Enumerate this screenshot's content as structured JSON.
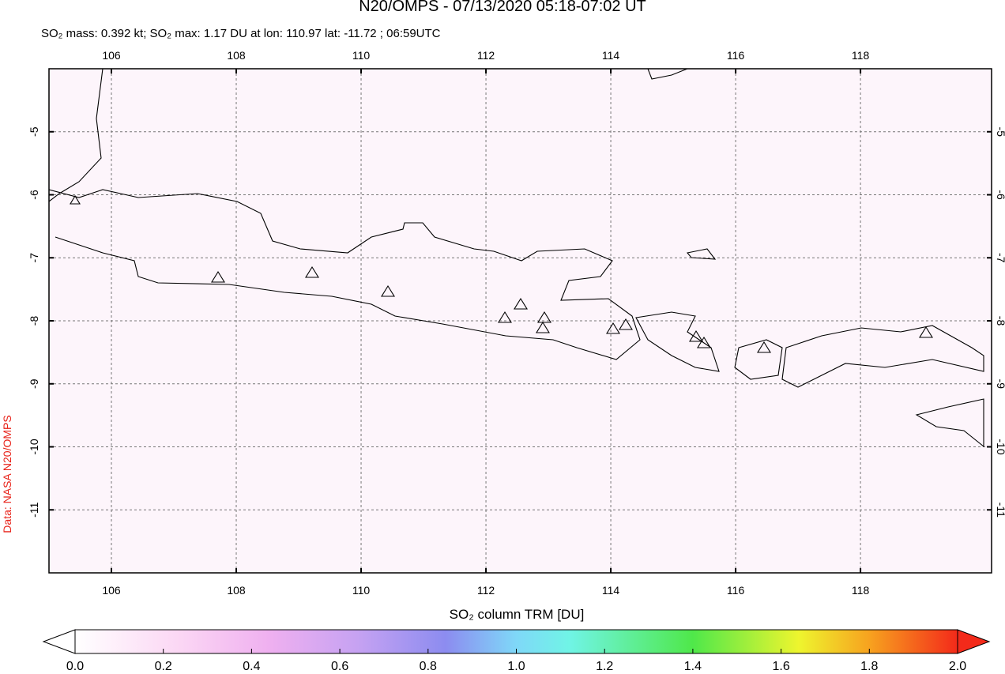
{
  "header": {
    "title": "N20/OMPS - 07/13/2020 05:18-07:02 UT",
    "subtitle": "SO₂ mass: 0.392 kt; SO₂ max: 1.17 DU at lon: 110.97 lat: -11.72 ; 06:59UTC"
  },
  "map": {
    "xlim": [
      105,
      120.1
    ],
    "ylim": [
      -12,
      -4
    ],
    "xticks": [
      106,
      108,
      110,
      112,
      114,
      116,
      118
    ],
    "yticks": [
      -5,
      -6,
      -7,
      -8,
      -9,
      -10,
      -11
    ],
    "credit": "Data: NASA N20/OMPS"
  },
  "colorbar": {
    "label": "SO₂ column TRM [DU]",
    "lim": [
      0,
      2
    ],
    "ticks": [
      {
        "value": 0,
        "label": "0.0"
      },
      0.2,
      0.4,
      0.6,
      0.8,
      {
        "value": 1,
        "label": "1.0"
      },
      1.2,
      1.4,
      1.6,
      1.8,
      {
        "value": 2,
        "label": "2.0"
      }
    ]
  }
}
